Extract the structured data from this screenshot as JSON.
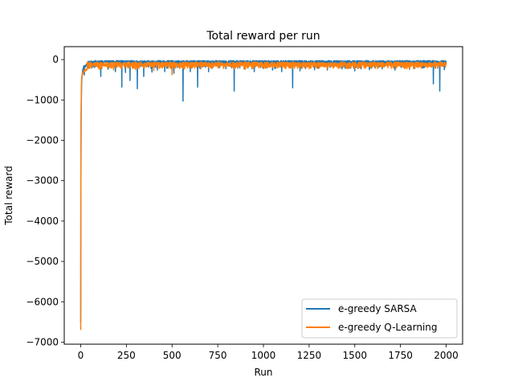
{
  "chart_data": {
    "type": "line",
    "title": "Total reward per run",
    "xlabel": "Run",
    "ylabel": "Total reward",
    "xlim": [
      -90,
      2090
    ],
    "ylim": [
      -7050,
      320
    ],
    "x_ticks": [
      0,
      250,
      500,
      750,
      1000,
      1250,
      1500,
      1750,
      2000
    ],
    "y_ticks": [
      -7000,
      -6000,
      -5000,
      -4000,
      -3000,
      -2000,
      -1000,
      0
    ],
    "grid": false,
    "legend_position": "lower-right",
    "num_runs": 2000,
    "series": [
      {
        "name": "e-greedy SARSA",
        "color": "#1f77b4",
        "baseline": -25,
        "early_values": [
          [
            0,
            -6500
          ],
          [
            1,
            -3000
          ],
          [
            2,
            -1600
          ],
          [
            3,
            -1100
          ],
          [
            4,
            -900
          ],
          [
            5,
            -600
          ],
          [
            7,
            -420
          ],
          [
            10,
            -260
          ],
          [
            15,
            -170
          ],
          [
            25,
            -120
          ],
          [
            40,
            -90
          ]
        ],
        "spikes": [
          [
            20,
            -380
          ],
          [
            60,
            -210
          ],
          [
            110,
            -420
          ],
          [
            150,
            -240
          ],
          [
            190,
            -300
          ],
          [
            225,
            -680
          ],
          [
            245,
            -320
          ],
          [
            270,
            -520
          ],
          [
            310,
            -720
          ],
          [
            345,
            -420
          ],
          [
            390,
            -310
          ],
          [
            420,
            -260
          ],
          [
            460,
            -300
          ],
          [
            510,
            -340
          ],
          [
            560,
            -1030
          ],
          [
            600,
            -300
          ],
          [
            640,
            -680
          ],
          [
            700,
            -300
          ],
          [
            760,
            -200
          ],
          [
            840,
            -780
          ],
          [
            900,
            -240
          ],
          [
            950,
            -300
          ],
          [
            1000,
            -220
          ],
          [
            1050,
            -260
          ],
          [
            1100,
            -300
          ],
          [
            1160,
            -700
          ],
          [
            1200,
            -280
          ],
          [
            1280,
            -250
          ],
          [
            1350,
            -260
          ],
          [
            1430,
            -230
          ],
          [
            1500,
            -280
          ],
          [
            1580,
            -250
          ],
          [
            1650,
            -230
          ],
          [
            1720,
            -260
          ],
          [
            1800,
            -240
          ],
          [
            1870,
            -210
          ],
          [
            1930,
            -600
          ],
          [
            1965,
            -780
          ],
          [
            1990,
            -250
          ]
        ]
      },
      {
        "name": "e-greedy Q-Learning",
        "color": "#ff7f0e",
        "baseline": -60,
        "early_values": [
          [
            0,
            -6700
          ],
          [
            1,
            -3400
          ],
          [
            2,
            -1800
          ],
          [
            3,
            -1000
          ],
          [
            4,
            -650
          ],
          [
            5,
            -450
          ],
          [
            8,
            -350
          ],
          [
            12,
            -300
          ],
          [
            20,
            -250
          ],
          [
            35,
            -200
          ]
        ],
        "spikes": [
          [
            100,
            -240
          ],
          [
            180,
            -260
          ],
          [
            300,
            -250
          ],
          [
            400,
            -270
          ],
          [
            500,
            -380
          ],
          [
            700,
            -200
          ],
          [
            900,
            -220
          ],
          [
            1200,
            -210
          ],
          [
            1500,
            -230
          ],
          [
            1700,
            -220
          ],
          [
            1900,
            -200
          ]
        ]
      }
    ]
  }
}
